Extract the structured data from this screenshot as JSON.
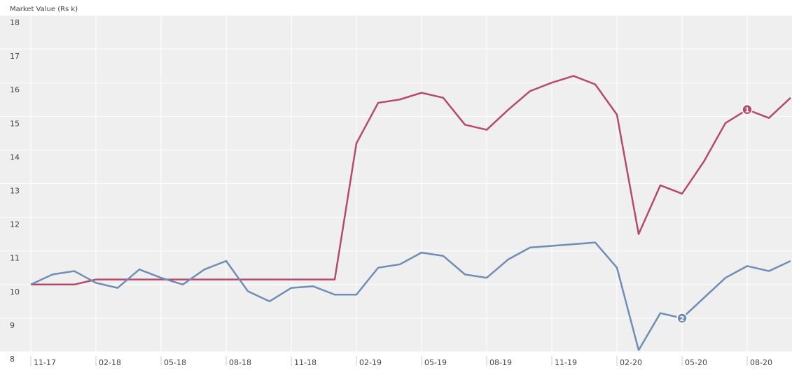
{
  "chart_data": {
    "type": "line",
    "y_axis_label": "Market Value (Rs k)",
    "categories": [
      "11-17",
      null,
      null,
      "02-18",
      null,
      null,
      "05-18",
      null,
      null,
      "08-18",
      null,
      null,
      "11-18",
      null,
      null,
      "02-19",
      null,
      null,
      "05-19",
      null,
      null,
      "08-19",
      null,
      null,
      "11-19",
      null,
      null,
      "02-20",
      null,
      null,
      "05-20",
      null,
      null,
      "08-20",
      null,
      null
    ],
    "series": [
      {
        "name": "1",
        "color": "#b5496e",
        "values": [
          10.0,
          10.0,
          10.0,
          10.15,
          10.15,
          10.15,
          10.15,
          10.15,
          10.15,
          10.15,
          10.15,
          10.15,
          10.15,
          10.15,
          10.15,
          14.2,
          15.4,
          15.5,
          15.7,
          15.55,
          14.75,
          14.6,
          15.2,
          15.75,
          16.0,
          16.2,
          15.95,
          15.05,
          11.5,
          12.95,
          12.7,
          13.65,
          14.8,
          15.2,
          14.95,
          15.55
        ]
      },
      {
        "name": "2",
        "color": "#6f8db5",
        "values": [
          10.0,
          10.3,
          10.4,
          10.05,
          9.9,
          10.45,
          10.2,
          10.0,
          10.45,
          10.7,
          9.8,
          9.5,
          9.9,
          9.95,
          9.7,
          9.7,
          10.5,
          10.6,
          10.95,
          10.85,
          10.3,
          10.2,
          10.75,
          11.1,
          11.15,
          11.2,
          11.25,
          10.5,
          8.05,
          9.15,
          9.0,
          9.6,
          10.2,
          10.55,
          10.4,
          10.7
        ]
      }
    ],
    "annotations": [
      {
        "text": "1",
        "series": 0,
        "index": 33
      },
      {
        "text": "2",
        "series": 1,
        "index": 30
      }
    ],
    "ylim": [
      8,
      18
    ],
    "yticks": [
      8,
      9,
      10,
      11,
      12,
      13,
      14,
      15,
      16,
      17,
      18
    ],
    "grid": true
  }
}
